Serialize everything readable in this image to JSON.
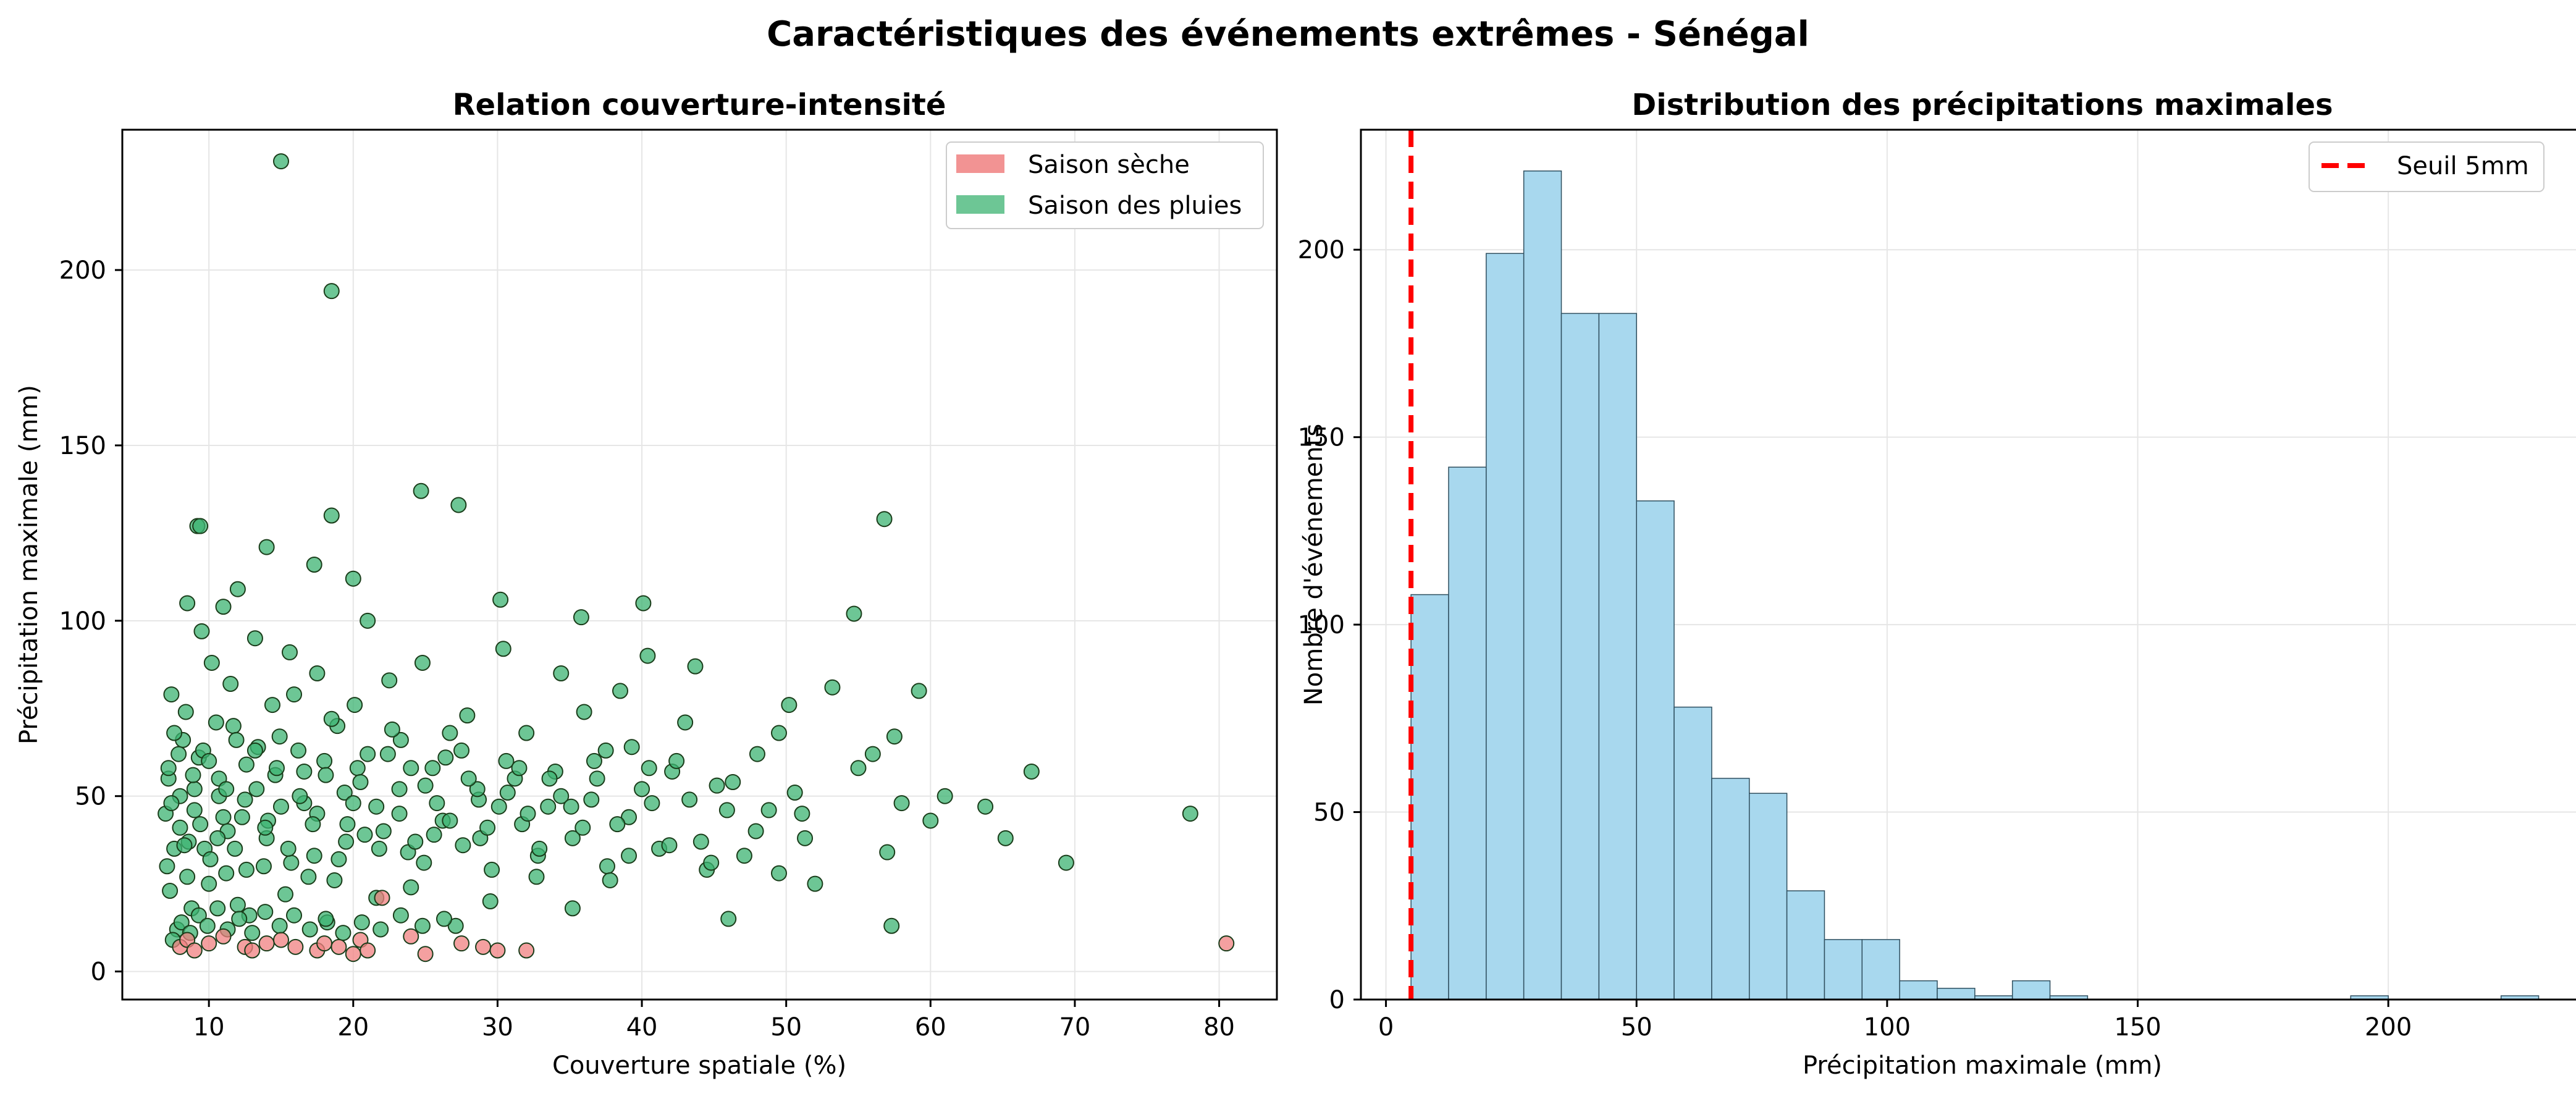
{
  "figure": {
    "suptitle": "Caractéristiques des événements extrêmes - Sénégal"
  },
  "chart_data": [
    {
      "type": "scatter",
      "title": "Relation couverture-intensité",
      "xlabel": "Couverture spatiale (%)",
      "ylabel": "Précipitation maximale (mm)",
      "xlim": [
        4,
        84
      ],
      "ylim": [
        -8,
        240
      ],
      "xticks": [
        10,
        20,
        30,
        40,
        50,
        60,
        70,
        80
      ],
      "yticks": [
        0,
        50,
        100,
        150,
        200
      ],
      "grid": true,
      "legend_position": "top-right",
      "series": [
        {
          "name": "Saison sèche",
          "color": "#f08080",
          "points": [
            [
              8.0,
              7
            ],
            [
              8.5,
              9
            ],
            [
              9.0,
              6
            ],
            [
              10.0,
              8
            ],
            [
              11.0,
              10
            ],
            [
              12.5,
              7
            ],
            [
              13.0,
              6
            ],
            [
              14.0,
              8
            ],
            [
              15.0,
              9
            ],
            [
              16.0,
              7
            ],
            [
              17.5,
              6
            ],
            [
              18.0,
              8
            ],
            [
              19.0,
              7
            ],
            [
              20.0,
              5
            ],
            [
              20.5,
              9
            ],
            [
              21.0,
              6
            ],
            [
              22.0,
              21
            ],
            [
              24.0,
              10
            ],
            [
              25.0,
              5
            ],
            [
              27.5,
              8
            ],
            [
              29.0,
              7
            ],
            [
              30.0,
              6
            ],
            [
              32.0,
              6
            ],
            [
              80.5,
              8
            ]
          ]
        },
        {
          "name": "Saison des pluies",
          "color": "#3cb371",
          "points": [
            [
              15.0,
              231
            ],
            [
              18.5,
              194
            ],
            [
              9.2,
              127
            ],
            [
              9.4,
              127
            ],
            [
              24.7,
              137
            ],
            [
              27.3,
              133
            ],
            [
              18.5,
              130
            ],
            [
              56.8,
              129
            ],
            [
              14.0,
              121
            ],
            [
              17.3,
              116
            ],
            [
              20.0,
              112
            ],
            [
              12.0,
              109
            ],
            [
              8.5,
              105
            ],
            [
              11.0,
              104
            ],
            [
              40.1,
              105
            ],
            [
              30.2,
              106
            ],
            [
              35.8,
              101
            ],
            [
              54.7,
              102
            ],
            [
              78.0,
              45
            ],
            [
              69.4,
              31
            ],
            [
              67.0,
              57
            ],
            [
              65.2,
              38
            ],
            [
              63.8,
              47
            ],
            [
              61.0,
              50
            ],
            [
              60.0,
              43
            ],
            [
              59.2,
              80
            ],
            [
              58.0,
              48
            ],
            [
              57.5,
              67
            ],
            [
              57.3,
              13
            ],
            [
              57.0,
              34
            ],
            [
              56.0,
              62
            ],
            [
              55.0,
              58
            ],
            [
              53.2,
              81
            ],
            [
              52.0,
              25
            ],
            [
              51.3,
              38
            ],
            [
              50.6,
              51
            ],
            [
              50.2,
              76
            ],
            [
              49.5,
              68
            ],
            [
              48.8,
              46
            ],
            [
              48.0,
              62
            ],
            [
              47.1,
              33
            ],
            [
              46.0,
              15
            ],
            [
              45.2,
              53
            ],
            [
              44.5,
              29
            ],
            [
              43.7,
              87
            ],
            [
              43.0,
              71
            ],
            [
              42.1,
              57
            ],
            [
              41.2,
              35
            ],
            [
              40.4,
              90
            ],
            [
              39.3,
              64
            ],
            [
              38.5,
              80
            ],
            [
              37.6,
              30
            ],
            [
              36.9,
              55
            ],
            [
              36.0,
              74
            ],
            [
              35.2,
              18
            ],
            [
              34.4,
              85
            ],
            [
              33.5,
              47
            ],
            [
              32.7,
              27
            ],
            [
              32.0,
              68
            ],
            [
              31.2,
              55
            ],
            [
              30.4,
              92
            ],
            [
              29.5,
              20
            ],
            [
              28.7,
              49
            ],
            [
              27.9,
              73
            ],
            [
              27.1,
              13
            ],
            [
              26.4,
              61
            ],
            [
              25.6,
              39
            ],
            [
              24.8,
              88
            ],
            [
              24.0,
              24
            ],
            [
              23.3,
              66
            ],
            [
              22.5,
              83
            ],
            [
              21.8,
              35
            ],
            [
              21.0,
              100
            ],
            [
              20.3,
              58
            ],
            [
              19.6,
              42
            ],
            [
              18.9,
              70
            ],
            [
              18.2,
              14
            ],
            [
              17.5,
              85
            ],
            [
              16.9,
              27
            ],
            [
              16.2,
              63
            ],
            [
              15.6,
              91
            ],
            [
              15.0,
              47
            ],
            [
              14.4,
              76
            ],
            [
              13.8,
              30
            ],
            [
              13.2,
              95
            ],
            [
              12.6,
              59
            ],
            [
              12.0,
              19
            ],
            [
              11.5,
              82
            ],
            [
              11.0,
              44
            ],
            [
              10.5,
              71
            ],
            [
              10.0,
              25
            ],
            [
              9.5,
              97
            ],
            [
              9.0,
              52
            ],
            [
              8.6,
              37
            ],
            [
              8.2,
              66
            ],
            [
              7.8,
              12
            ],
            [
              7.4,
              79
            ],
            [
              7.2,
              55
            ],
            [
              7.1,
              30
            ],
            [
              7.0,
              45
            ],
            [
              7.3,
              23
            ],
            [
              7.6,
              68
            ],
            [
              8.0,
              41
            ],
            [
              8.4,
              74
            ],
            [
              8.8,
              18
            ],
            [
              9.3,
              61
            ],
            [
              9.7,
              35
            ],
            [
              10.2,
              88
            ],
            [
              10.7,
              50
            ],
            [
              11.2,
              28
            ],
            [
              11.7,
              70
            ],
            [
              12.3,
              44
            ],
            [
              12.8,
              16
            ],
            [
              13.4,
              64
            ],
            [
              14.0,
              38
            ],
            [
              14.6,
              56
            ],
            [
              15.3,
              22
            ],
            [
              15.9,
              79
            ],
            [
              16.6,
              48
            ],
            [
              17.3,
              33
            ],
            [
              18.0,
              60
            ],
            [
              18.7,
              26
            ],
            [
              19.4,
              51
            ],
            [
              20.1,
              76
            ],
            [
              20.8,
              39
            ],
            [
              21.6,
              21
            ],
            [
              22.4,
              62
            ],
            [
              23.2,
              45
            ],
            [
              24.0,
              58
            ],
            [
              24.9,
              31
            ],
            [
              25.8,
              48
            ],
            [
              26.7,
              68
            ],
            [
              27.6,
              36
            ],
            [
              28.6,
              52
            ],
            [
              29.6,
              29
            ],
            [
              30.6,
              60
            ],
            [
              31.7,
              42
            ],
            [
              32.8,
              33
            ],
            [
              34.0,
              57
            ],
            [
              35.2,
              38
            ],
            [
              36.5,
              49
            ],
            [
              37.8,
              26
            ],
            [
              39.1,
              44
            ],
            [
              40.5,
              58
            ],
            [
              41.9,
              36
            ],
            [
              43.3,
              49
            ],
            [
              44.8,
              31
            ],
            [
              46.3,
              54
            ],
            [
              47.9,
              40
            ],
            [
              49.5,
              28
            ],
            [
              51.1,
              45
            ],
            [
              7.5,
              9
            ],
            [
              8.1,
              14
            ],
            [
              8.7,
              11
            ],
            [
              9.3,
              16
            ],
            [
              9.9,
              13
            ],
            [
              10.6,
              18
            ],
            [
              11.3,
              12
            ],
            [
              12.1,
              15
            ],
            [
              13.0,
              11
            ],
            [
              13.9,
              17
            ],
            [
              14.9,
              13
            ],
            [
              15.9,
              16
            ],
            [
              17.0,
              12
            ],
            [
              18.1,
              15
            ],
            [
              19.3,
              11
            ],
            [
              20.6,
              14
            ],
            [
              21.9,
              12
            ],
            [
              23.3,
              16
            ],
            [
              24.8,
              13
            ],
            [
              26.3,
              15
            ],
            [
              7.2,
              58
            ],
            [
              7.6,
              35
            ],
            [
              8.0,
              50
            ],
            [
              8.5,
              27
            ],
            [
              9.0,
              46
            ],
            [
              9.6,
              63
            ],
            [
              10.1,
              32
            ],
            [
              10.7,
              55
            ],
            [
              11.3,
              40
            ],
            [
              11.9,
              66
            ],
            [
              12.6,
              29
            ],
            [
              13.3,
              52
            ],
            [
              14.1,
              43
            ],
            [
              14.9,
              67
            ],
            [
              15.7,
              31
            ],
            [
              16.6,
              57
            ],
            [
              17.5,
              45
            ],
            [
              18.5,
              72
            ],
            [
              19.5,
              37
            ],
            [
              20.5,
              54
            ],
            [
              21.6,
              47
            ],
            [
              22.7,
              69
            ],
            [
              23.8,
              34
            ],
            [
              25.0,
              53
            ],
            [
              26.2,
              43
            ],
            [
              27.5,
              63
            ],
            [
              28.8,
              38
            ],
            [
              30.1,
              47
            ],
            [
              31.5,
              58
            ],
            [
              32.9,
              35
            ],
            [
              34.4,
              50
            ],
            [
              35.9,
              41
            ],
            [
              37.5,
              63
            ],
            [
              39.1,
              33
            ],
            [
              40.7,
              48
            ],
            [
              42.4,
              60
            ],
            [
              44.1,
              37
            ],
            [
              45.9,
              46
            ],
            [
              7.4,
              48
            ],
            [
              7.9,
              62
            ],
            [
              8.3,
              36
            ],
            [
              8.9,
              56
            ],
            [
              9.4,
              42
            ],
            [
              10.0,
              60
            ],
            [
              10.6,
              38
            ],
            [
              11.2,
              52
            ],
            [
              11.8,
              35
            ],
            [
              12.5,
              49
            ],
            [
              13.2,
              63
            ],
            [
              13.9,
              41
            ],
            [
              14.7,
              58
            ],
            [
              15.5,
              35
            ],
            [
              16.3,
              50
            ],
            [
              17.2,
              42
            ],
            [
              18.1,
              56
            ],
            [
              19.0,
              32
            ],
            [
              20.0,
              48
            ],
            [
              21.0,
              62
            ],
            [
              22.1,
              40
            ],
            [
              23.2,
              52
            ],
            [
              24.3,
              37
            ],
            [
              25.5,
              58
            ],
            [
              26.7,
              43
            ],
            [
              28.0,
              55
            ],
            [
              29.3,
              41
            ],
            [
              30.7,
              51
            ],
            [
              32.1,
              45
            ],
            [
              33.6,
              55
            ],
            [
              35.1,
              47
            ],
            [
              36.7,
              60
            ],
            [
              38.3,
              42
            ],
            [
              40.0,
              52
            ]
          ]
        }
      ]
    },
    {
      "type": "bar",
      "title": "Distribution des précipitations maximales",
      "xlabel": "Précipitation maximale (mm)",
      "ylabel": "Nombre d'événements",
      "xlim": [
        -5,
        243
      ],
      "ylim": [
        0,
        232
      ],
      "xticks": [
        0,
        50,
        100,
        150,
        200
      ],
      "yticks": [
        0,
        50,
        100,
        150,
        200
      ],
      "grid": true,
      "legend_position": "top-right",
      "bin_width": 7.5,
      "bin_start": 5,
      "counts": [
        108,
        142,
        199,
        221,
        183,
        183,
        133,
        78,
        59,
        55,
        29,
        16,
        16,
        5,
        3,
        1,
        5,
        1,
        0,
        0,
        0,
        0,
        0,
        0,
        0,
        1,
        0,
        0,
        0,
        1
      ],
      "bar_color": "#a8d8ee",
      "threshold": {
        "label": "Seuil 5mm",
        "value": 5,
        "color": "#ff0000"
      }
    }
  ]
}
